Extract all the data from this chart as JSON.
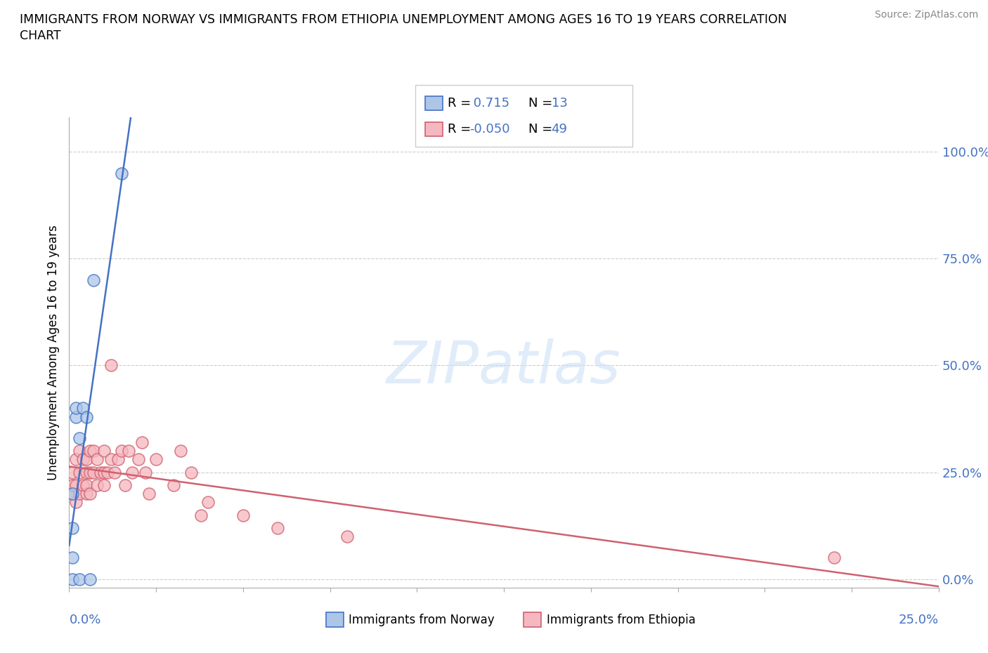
{
  "title": "IMMIGRANTS FROM NORWAY VS IMMIGRANTS FROM ETHIOPIA UNEMPLOYMENT AMONG AGES 16 TO 19 YEARS CORRELATION\nCHART",
  "source": "Source: ZipAtlas.com",
  "ylabel": "Unemployment Among Ages 16 to 19 years",
  "yticks": [
    "0.0%",
    "25.0%",
    "50.0%",
    "75.0%",
    "100.0%"
  ],
  "ytick_vals": [
    0,
    0.25,
    0.5,
    0.75,
    1.0
  ],
  "xlim": [
    0,
    0.25
  ],
  "ylim": [
    -0.02,
    1.08
  ],
  "norway_R": 0.715,
  "norway_N": 13,
  "ethiopia_R": -0.05,
  "ethiopia_N": 49,
  "norway_color": "#adc6e8",
  "ethiopia_color": "#f5b8c0",
  "norway_line_color": "#4472c4",
  "ethiopia_line_color": "#d06070",
  "legend_norway_label": "Immigrants from Norway",
  "legend_ethiopia_label": "Immigrants from Ethiopia",
  "norway_x": [
    0.001,
    0.001,
    0.001,
    0.001,
    0.002,
    0.002,
    0.003,
    0.003,
    0.004,
    0.005,
    0.006,
    0.007,
    0.015
  ],
  "norway_y": [
    0.0,
    0.05,
    0.12,
    0.2,
    0.38,
    0.4,
    0.0,
    0.33,
    0.4,
    0.38,
    0.0,
    0.7,
    0.95
  ],
  "ethiopia_x": [
    0.001,
    0.001,
    0.001,
    0.002,
    0.002,
    0.002,
    0.003,
    0.003,
    0.003,
    0.004,
    0.004,
    0.005,
    0.005,
    0.005,
    0.005,
    0.006,
    0.006,
    0.006,
    0.007,
    0.007,
    0.008,
    0.008,
    0.009,
    0.01,
    0.01,
    0.01,
    0.011,
    0.012,
    0.012,
    0.013,
    0.014,
    0.015,
    0.016,
    0.017,
    0.018,
    0.02,
    0.021,
    0.022,
    0.023,
    0.025,
    0.03,
    0.032,
    0.035,
    0.038,
    0.04,
    0.05,
    0.06,
    0.08,
    0.22
  ],
  "ethiopia_y": [
    0.2,
    0.22,
    0.25,
    0.18,
    0.22,
    0.28,
    0.2,
    0.25,
    0.3,
    0.22,
    0.28,
    0.2,
    0.22,
    0.25,
    0.28,
    0.2,
    0.25,
    0.3,
    0.25,
    0.3,
    0.22,
    0.28,
    0.25,
    0.22,
    0.25,
    0.3,
    0.25,
    0.5,
    0.28,
    0.25,
    0.28,
    0.3,
    0.22,
    0.3,
    0.25,
    0.28,
    0.32,
    0.25,
    0.2,
    0.28,
    0.22,
    0.3,
    0.25,
    0.15,
    0.18,
    0.15,
    0.12,
    0.1,
    0.05
  ],
  "watermark": "ZIPatlas",
  "background_color": "#ffffff",
  "grid_color": "#cccccc"
}
